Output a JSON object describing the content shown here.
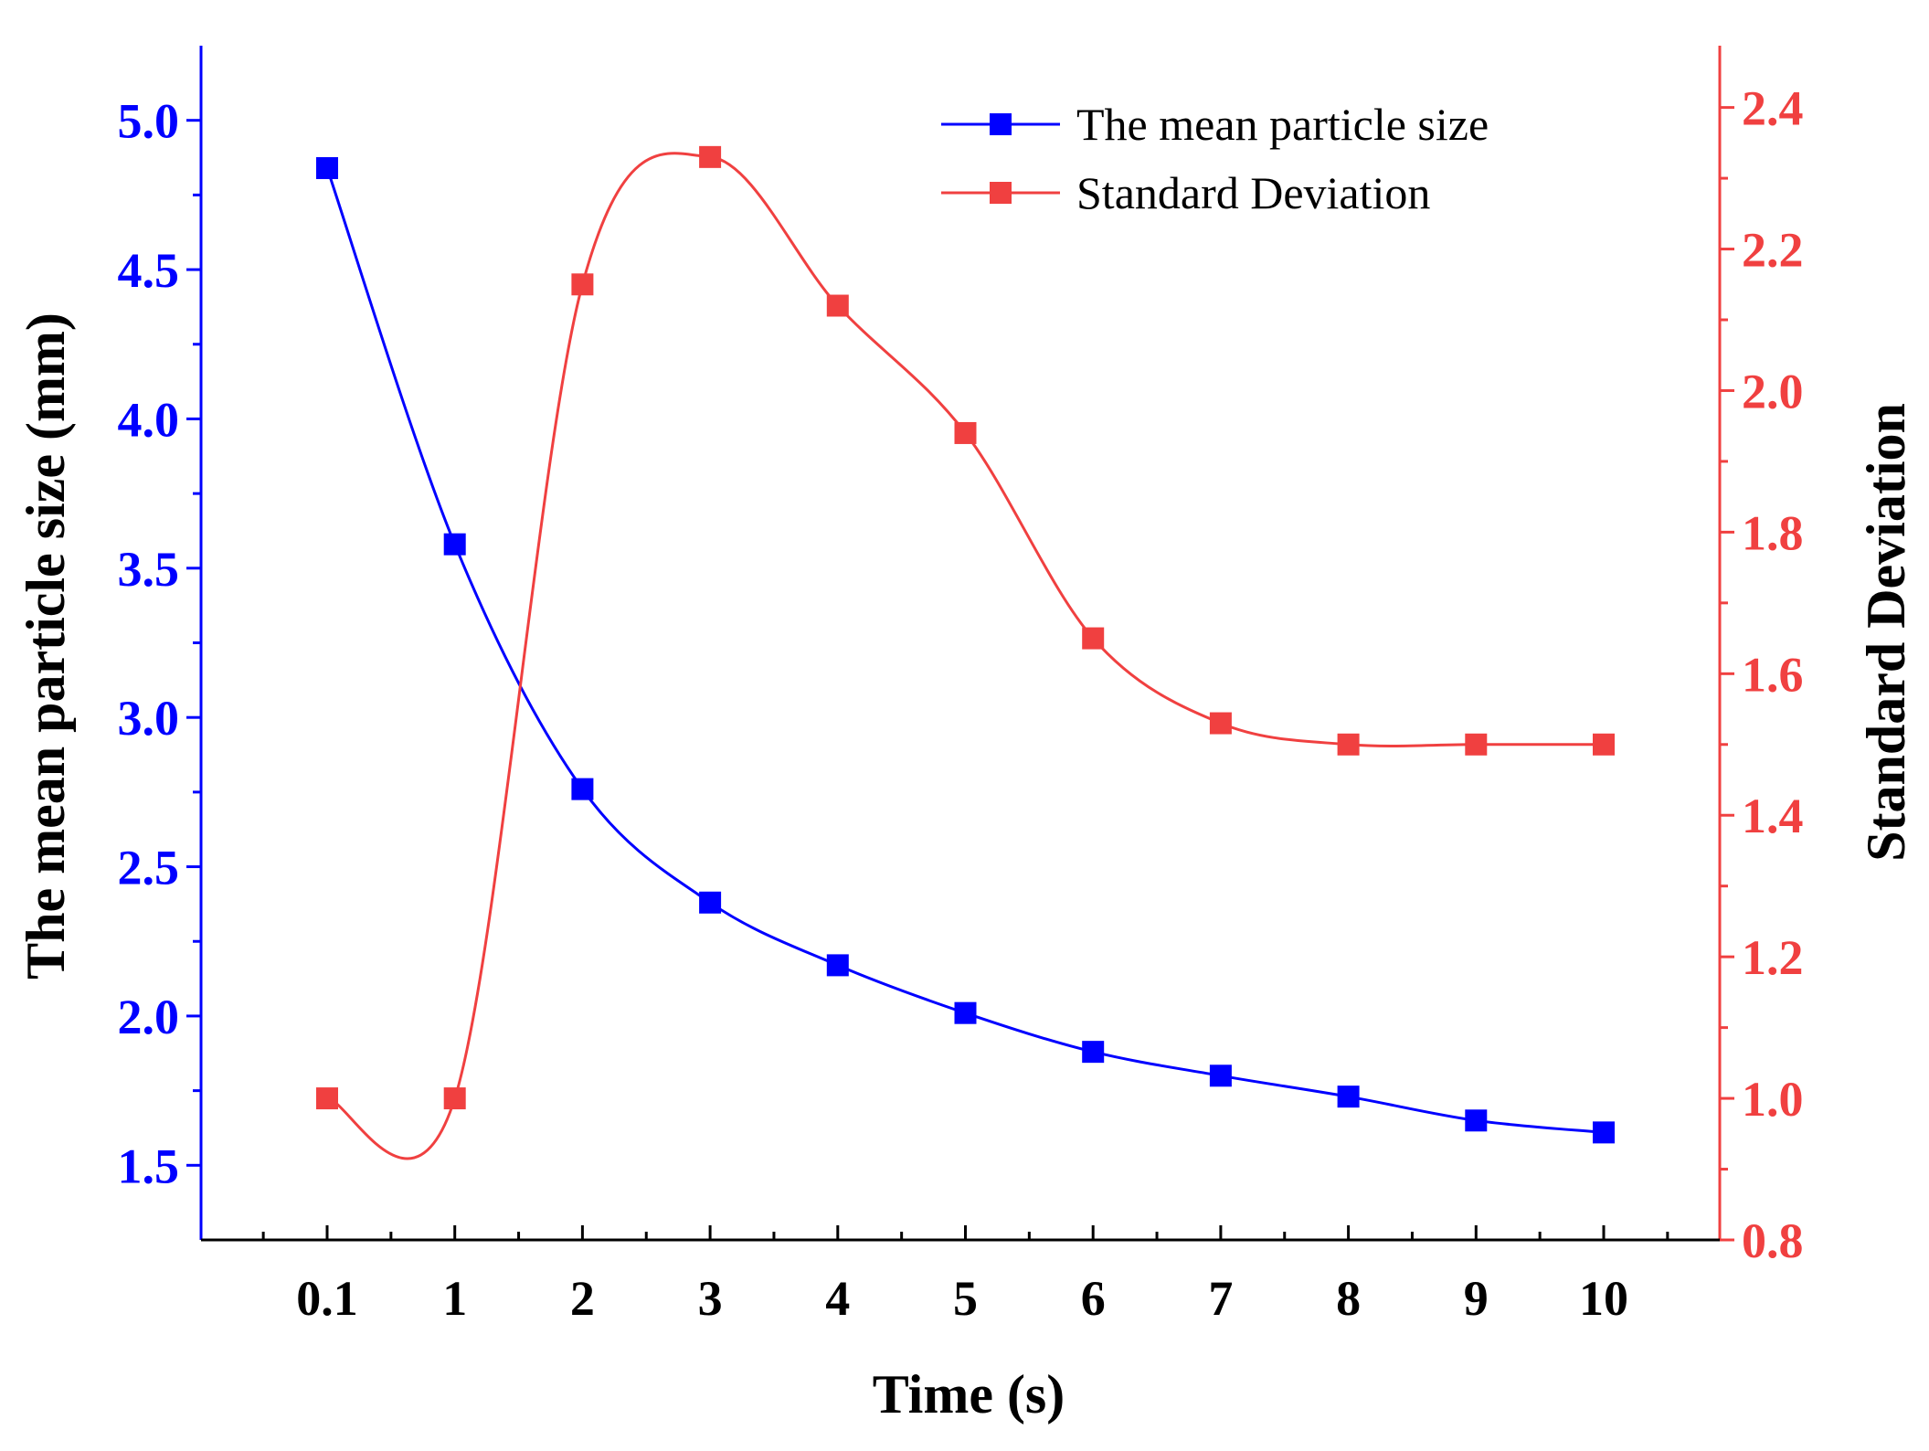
{
  "chart_data": {
    "type": "line",
    "title": "",
    "xlabel": "Time (s)",
    "categories": [
      "0.1",
      "1",
      "2",
      "3",
      "4",
      "5",
      "6",
      "7",
      "8",
      "9",
      "10"
    ],
    "left_axis": {
      "label": "The mean particle size (mm)",
      "color": "#0000FF",
      "ylim": [
        1.25,
        5.25
      ],
      "ticks": [
        "1.5",
        "2.0",
        "2.5",
        "3.0",
        "3.5",
        "4.0",
        "4.5",
        "5.0"
      ]
    },
    "right_axis": {
      "label": "Standard Deviation",
      "color": "#F04040",
      "ylim": [
        0.8,
        2.4873
      ],
      "ticks": [
        "0.8",
        "1.0",
        "1.2",
        "1.4",
        "1.6",
        "1.8",
        "2.0",
        "2.2",
        "2.4"
      ]
    },
    "series": [
      {
        "name": "The mean particle size",
        "axis": "left",
        "color": "#0000FF",
        "marker": "square",
        "values": [
          4.84,
          3.58,
          2.76,
          2.38,
          2.17,
          2.01,
          1.88,
          1.8,
          1.73,
          1.65,
          1.61
        ]
      },
      {
        "name": "Standard Deviation",
        "axis": "right",
        "color": "#F04040",
        "marker": "square",
        "values": [
          1.0,
          1.0,
          2.15,
          2.33,
          2.12,
          1.94,
          1.65,
          1.53,
          1.5,
          1.5,
          1.5
        ]
      }
    ],
    "legend_position": "top-right",
    "grid": false
  }
}
